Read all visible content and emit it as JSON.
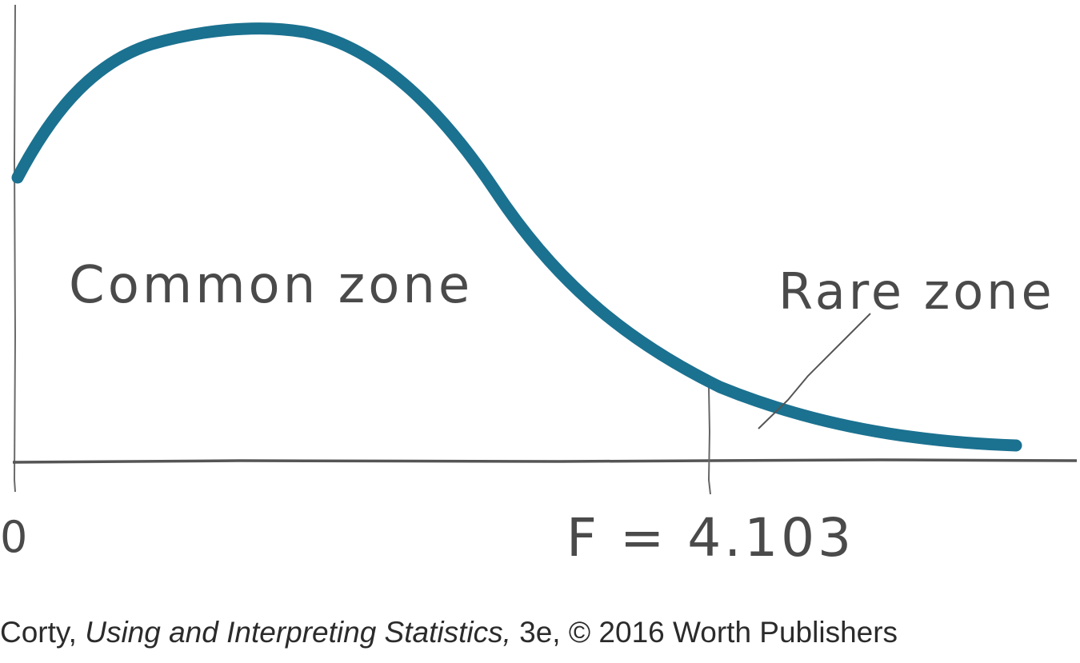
{
  "diagram": {
    "curve_color": "#1b7190",
    "axis_color": "#555555",
    "labels": {
      "common_zone": "Common zone",
      "rare_zone": "Rare zone",
      "origin": "0",
      "critical": "F = 4.103"
    }
  },
  "caption": {
    "author": "Corty,",
    "title": "Using and Interpreting Statistics,",
    "edition": "3e,",
    "copyright": "© 2016 Worth Publishers"
  }
}
